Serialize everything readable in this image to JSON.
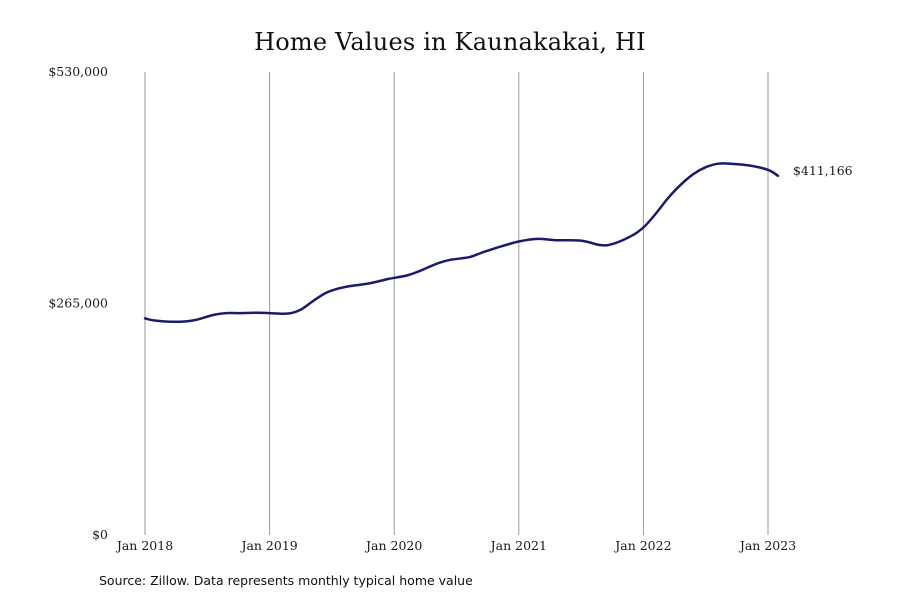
{
  "chart_data": {
    "type": "line",
    "title": "Home Values in Kaunakakai, HI",
    "source": "Source: Zillow. Data represents monthly typical home value",
    "ylim": [
      0,
      530000
    ],
    "y_ticks": [
      {
        "value": 0,
        "label": "$0"
      },
      {
        "value": 265000,
        "label": "$265,000"
      },
      {
        "value": 530000,
        "label": "$530,000"
      }
    ],
    "x_ticks": [
      {
        "value": 2018.0,
        "label": "Jan 2018"
      },
      {
        "value": 2019.0,
        "label": "Jan 2019"
      },
      {
        "value": 2020.0,
        "label": "Jan 2020"
      },
      {
        "value": 2021.0,
        "label": "Jan 2021"
      },
      {
        "value": 2022.0,
        "label": "Jan 2022"
      },
      {
        "value": 2023.0,
        "label": "Jan 2023"
      }
    ],
    "grid": "vertical",
    "end_label": "$411,166",
    "line_color": "#1b1b6e",
    "series": [
      {
        "x": [
          2018.0,
          2018.08,
          2018.25,
          2018.4,
          2018.55,
          2018.65,
          2018.75,
          2018.9,
          2019.0,
          2019.15,
          2019.25,
          2019.35,
          2019.45,
          2019.55,
          2019.65,
          2019.8,
          2019.95,
          2020.1,
          2020.2,
          2020.35,
          2020.45,
          2020.6,
          2020.7,
          2020.85,
          2021.0,
          2021.15,
          2021.3,
          2021.5,
          2021.65,
          2021.75,
          2021.9,
          2022.0,
          2022.1,
          2022.2,
          2022.3,
          2022.4,
          2022.5,
          2022.6,
          2022.7,
          2022.85,
          2023.0,
          2023.08
        ],
        "y": [
          248000,
          245500,
          244000,
          246000,
          252000,
          254000,
          254000,
          254500,
          254000,
          253500,
          258000,
          268000,
          277000,
          282000,
          285000,
          288000,
          293000,
          297000,
          302000,
          311000,
          315000,
          318000,
          323000,
          330000,
          336000,
          339000,
          337500,
          337000,
          332000,
          333000,
          342000,
          352000,
          368000,
          386000,
          401000,
          413000,
          421000,
          425000,
          425000,
          423000,
          418000,
          411166
        ]
      }
    ]
  }
}
